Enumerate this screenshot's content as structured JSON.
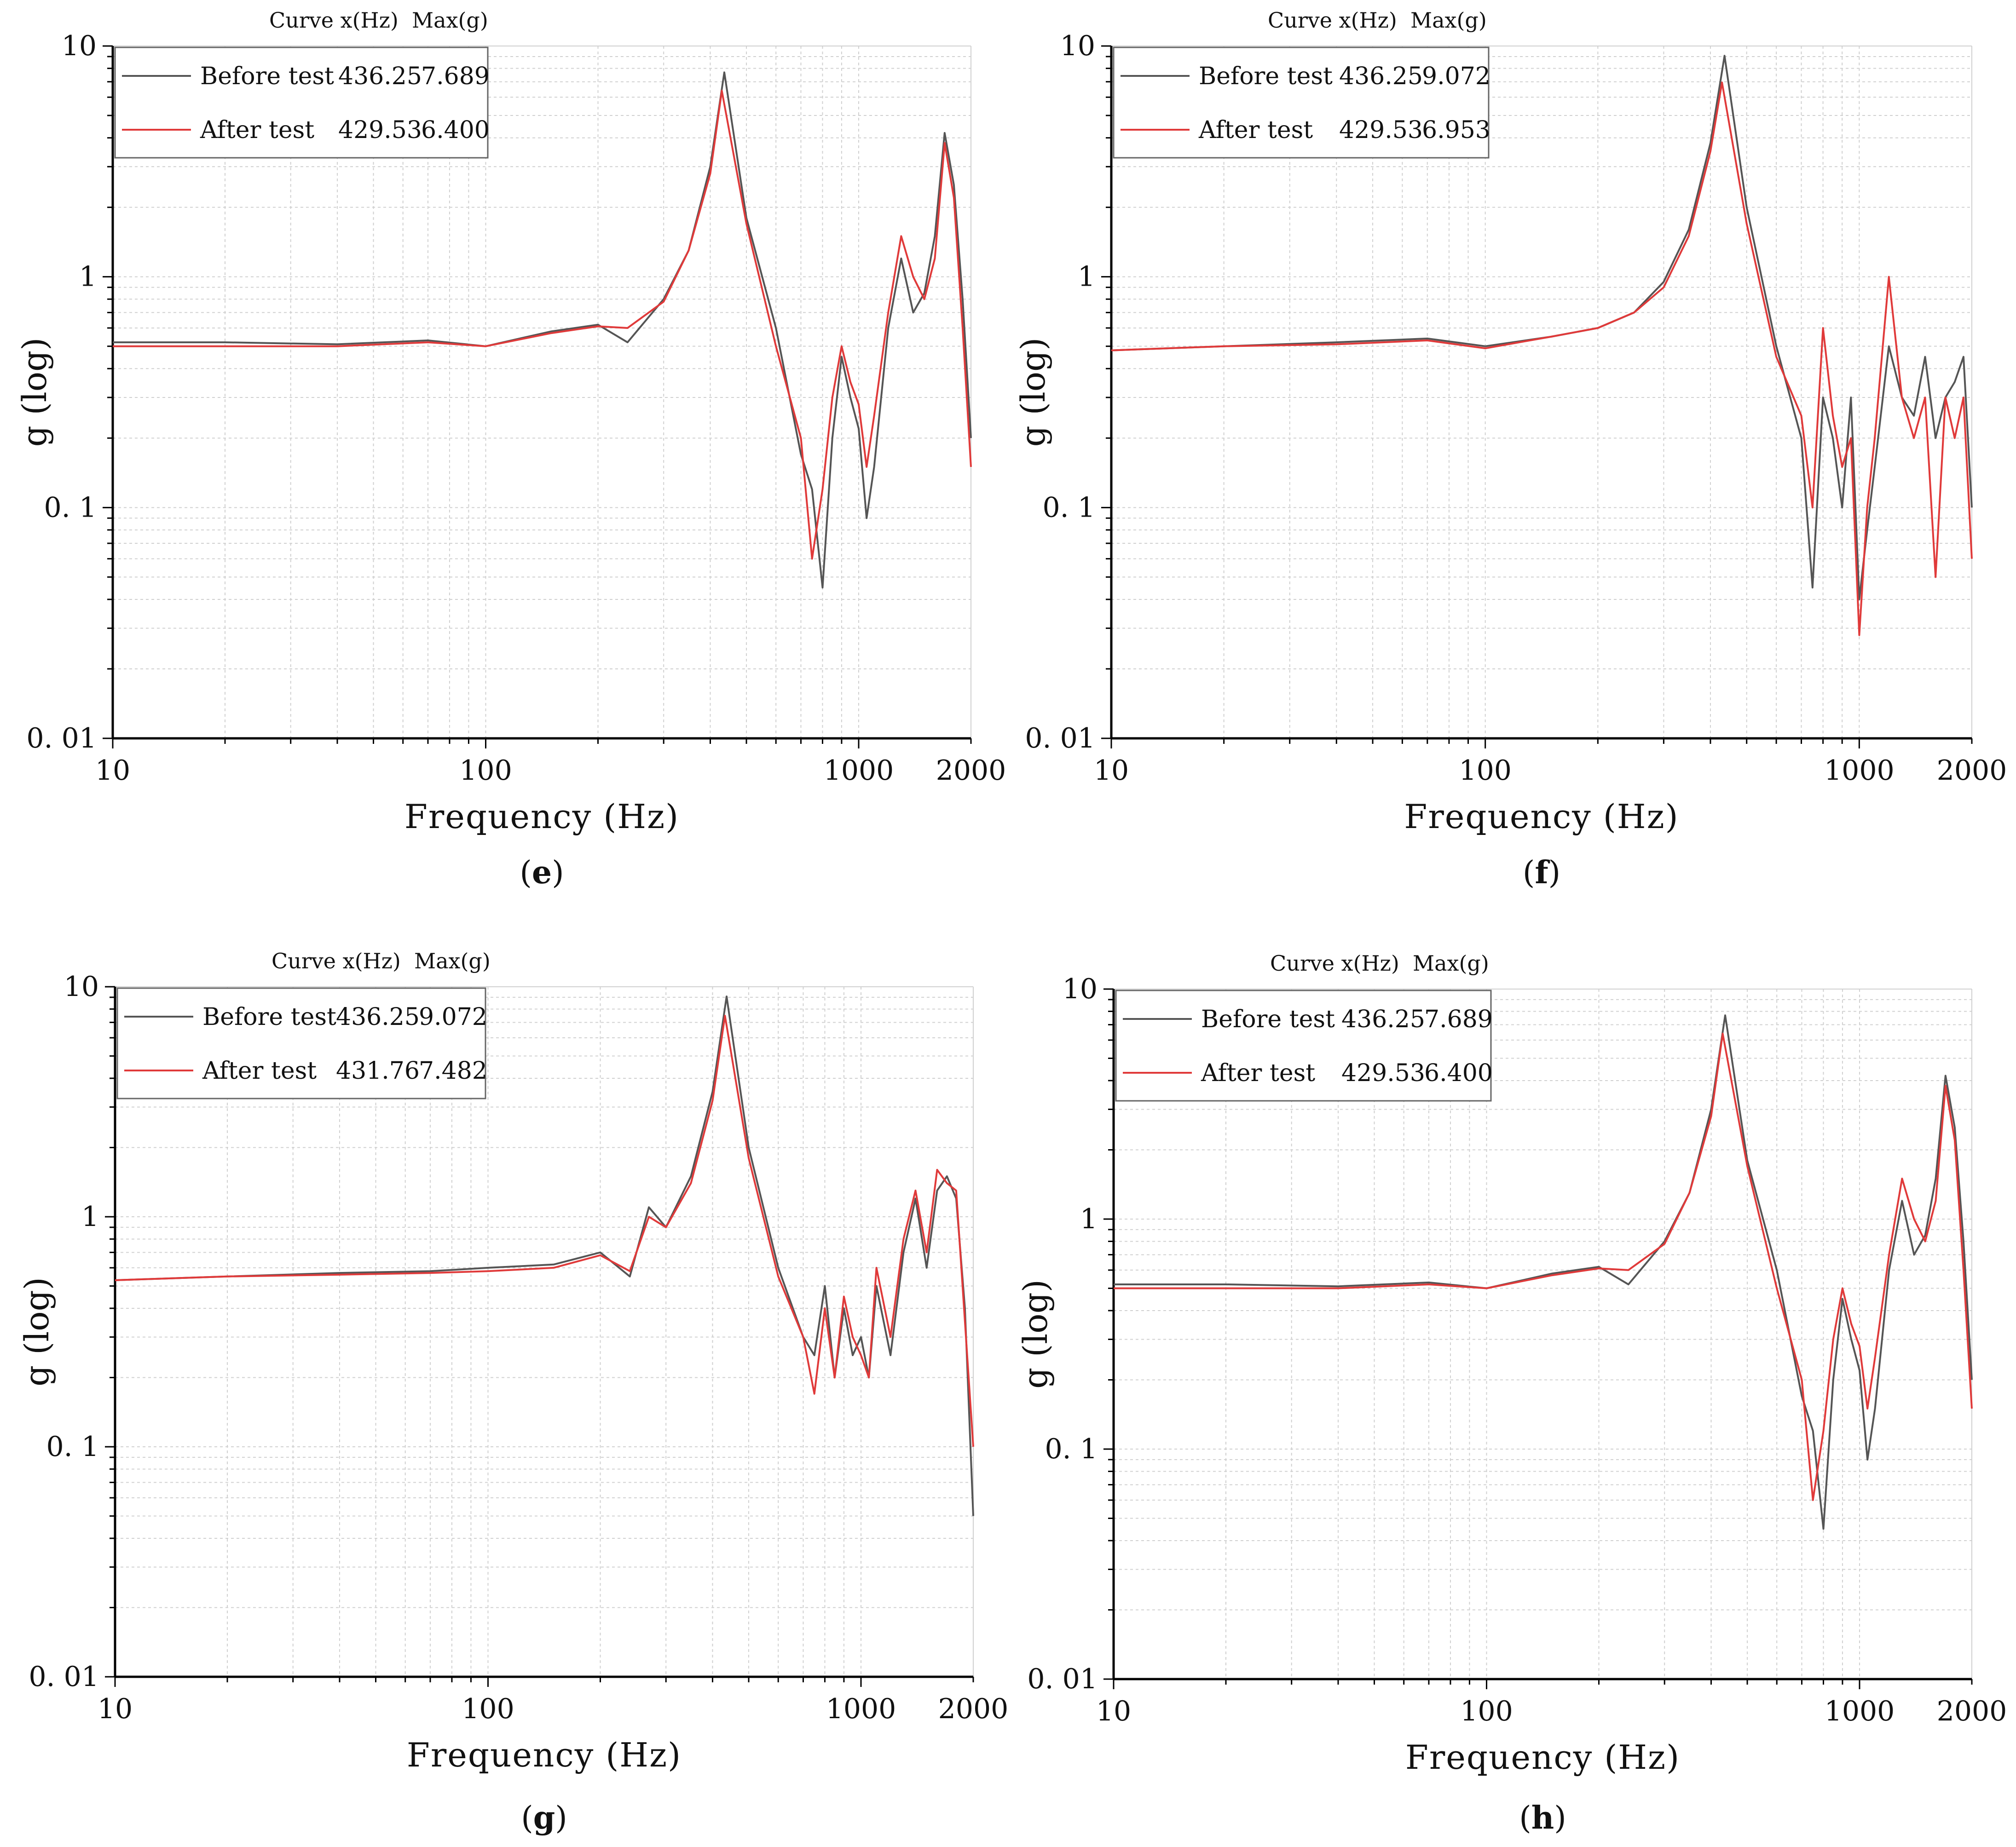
{
  "figure": {
    "legend_header_curve": "Curve x(Hz)",
    "legend_header_max": "Max(g)"
  },
  "colors": {
    "before": "#555555",
    "after": "#e03a3a",
    "grid": "#d0d0d0",
    "axis": "#000000"
  },
  "chart_data": [
    {
      "panel_label": "e",
      "type": "line",
      "xscale": "log",
      "yscale": "log",
      "xlabel": "Frequency (Hz)",
      "ylabel": "g (log)",
      "xlim": [
        10,
        2000
      ],
      "ylim": [
        0.01,
        10
      ],
      "xticks": [
        {
          "v": 10,
          "label": "10"
        },
        {
          "v": 100,
          "label": "100"
        },
        {
          "v": 1000,
          "label": "1000"
        },
        {
          "v": 2000,
          "label": "2000"
        }
      ],
      "yticks": [
        {
          "v": 10,
          "label": "10"
        },
        {
          "v": 1,
          "label": "1"
        },
        {
          "v": 0.1,
          "label": "0. 1"
        },
        {
          "v": 0.01,
          "label": "0. 01"
        }
      ],
      "legend": [
        {
          "name": "Before test",
          "x_hz": "436.25",
          "max_g": "7.689"
        },
        {
          "name": "After test",
          "x_hz": "429.53",
          "max_g": "6.400"
        }
      ],
      "series": [
        {
          "name": "Before test",
          "x": [
            10,
            20,
            40,
            70,
            100,
            150,
            200,
            240,
            300,
            350,
            400,
            436.25,
            500,
            600,
            700,
            750,
            800,
            850,
            900,
            950,
            1000,
            1050,
            1100,
            1200,
            1300,
            1400,
            1500,
            1600,
            1700,
            1800,
            1900,
            2000
          ],
          "y": [
            0.52,
            0.52,
            0.51,
            0.53,
            0.5,
            0.58,
            0.62,
            0.52,
            0.8,
            1.3,
            3.0,
            7.689,
            1.8,
            0.6,
            0.17,
            0.12,
            0.045,
            0.2,
            0.45,
            0.3,
            0.22,
            0.09,
            0.15,
            0.6,
            1.2,
            0.7,
            0.85,
            1.5,
            4.2,
            2.5,
            0.8,
            0.2
          ]
        },
        {
          "name": "After test",
          "x": [
            10,
            20,
            40,
            70,
            100,
            150,
            200,
            240,
            300,
            350,
            400,
            429.53,
            500,
            600,
            700,
            750,
            800,
            850,
            900,
            950,
            1000,
            1050,
            1100,
            1200,
            1300,
            1400,
            1500,
            1600,
            1700,
            1800,
            1900,
            2000
          ],
          "y": [
            0.5,
            0.5,
            0.5,
            0.52,
            0.5,
            0.57,
            0.61,
            0.6,
            0.78,
            1.3,
            2.8,
            6.4,
            1.7,
            0.5,
            0.2,
            0.06,
            0.12,
            0.3,
            0.5,
            0.35,
            0.28,
            0.15,
            0.25,
            0.7,
            1.5,
            1.0,
            0.8,
            1.2,
            3.8,
            2.2,
            0.6,
            0.15
          ]
        }
      ]
    },
    {
      "panel_label": "f",
      "type": "line",
      "xscale": "log",
      "yscale": "log",
      "xlabel": "Frequency (Hz)",
      "ylabel": "g (log)",
      "xlim": [
        10,
        2000
      ],
      "ylim": [
        0.01,
        10
      ],
      "xticks": [
        {
          "v": 10,
          "label": "10"
        },
        {
          "v": 100,
          "label": "100"
        },
        {
          "v": 1000,
          "label": "1000"
        },
        {
          "v": 2000,
          "label": "2000"
        }
      ],
      "yticks": [
        {
          "v": 10,
          "label": "10"
        },
        {
          "v": 1,
          "label": "1"
        },
        {
          "v": 0.1,
          "label": "0. 1"
        },
        {
          "v": 0.01,
          "label": "0. 01"
        }
      ],
      "legend": [
        {
          "name": "Before test",
          "x_hz": "436.25",
          "max_g": "9.072"
        },
        {
          "name": "After test",
          "x_hz": "429.53",
          "max_g": "6.953"
        }
      ],
      "series": [
        {
          "name": "Before test",
          "x": [
            10,
            20,
            40,
            70,
            100,
            150,
            200,
            250,
            300,
            350,
            400,
            436.25,
            500,
            600,
            700,
            750,
            800,
            850,
            900,
            950,
            1000,
            1050,
            1100,
            1200,
            1300,
            1400,
            1500,
            1600,
            1700,
            1800,
            1900,
            2000
          ],
          "y": [
            0.48,
            0.5,
            0.52,
            0.54,
            0.5,
            0.55,
            0.6,
            0.7,
            0.95,
            1.6,
            3.8,
            9.072,
            2.0,
            0.5,
            0.2,
            0.045,
            0.3,
            0.2,
            0.1,
            0.3,
            0.04,
            0.08,
            0.15,
            0.5,
            0.3,
            0.25,
            0.45,
            0.2,
            0.3,
            0.35,
            0.45,
            0.1
          ]
        },
        {
          "name": "After test",
          "x": [
            10,
            20,
            40,
            70,
            100,
            150,
            200,
            250,
            300,
            350,
            400,
            429.53,
            500,
            600,
            700,
            750,
            800,
            850,
            900,
            950,
            1000,
            1050,
            1100,
            1200,
            1300,
            1400,
            1500,
            1600,
            1700,
            1800,
            1900,
            2000
          ],
          "y": [
            0.48,
            0.5,
            0.51,
            0.53,
            0.49,
            0.55,
            0.6,
            0.7,
            0.9,
            1.5,
            3.5,
            6.953,
            1.7,
            0.45,
            0.25,
            0.1,
            0.6,
            0.25,
            0.15,
            0.2,
            0.028,
            0.1,
            0.2,
            1.0,
            0.3,
            0.2,
            0.3,
            0.05,
            0.3,
            0.2,
            0.3,
            0.06
          ]
        }
      ]
    },
    {
      "panel_label": "g",
      "type": "line",
      "xscale": "log",
      "yscale": "log",
      "xlabel": "Frequency (Hz)",
      "ylabel": "g (log)",
      "xlim": [
        10,
        2000
      ],
      "ylim": [
        0.01,
        10
      ],
      "xticks": [
        {
          "v": 10,
          "label": "10"
        },
        {
          "v": 100,
          "label": "100"
        },
        {
          "v": 1000,
          "label": "1000"
        },
        {
          "v": 2000,
          "label": "2000"
        }
      ],
      "yticks": [
        {
          "v": 10,
          "label": "10"
        },
        {
          "v": 1,
          "label": "1"
        },
        {
          "v": 0.1,
          "label": "0. 1"
        },
        {
          "v": 0.01,
          "label": "0. 01"
        }
      ],
      "legend": [
        {
          "name": "Before test",
          "x_hz": "436.25",
          "max_g": "9.072"
        },
        {
          "name": "After test",
          "x_hz": "431.76",
          "max_g": "7.482"
        }
      ],
      "series": [
        {
          "name": "Before test",
          "x": [
            10,
            20,
            40,
            70,
            100,
            150,
            200,
            240,
            270,
            300,
            350,
            400,
            436.25,
            500,
            600,
            700,
            750,
            800,
            850,
            900,
            950,
            1000,
            1050,
            1100,
            1200,
            1300,
            1400,
            1500,
            1600,
            1700,
            1800,
            1900,
            2000
          ],
          "y": [
            0.53,
            0.55,
            0.57,
            0.58,
            0.6,
            0.62,
            0.7,
            0.55,
            1.1,
            0.9,
            1.5,
            3.5,
            9.072,
            2.0,
            0.6,
            0.3,
            0.25,
            0.5,
            0.2,
            0.4,
            0.25,
            0.3,
            0.2,
            0.5,
            0.25,
            0.7,
            1.2,
            0.6,
            1.3,
            1.5,
            1.2,
            0.4,
            0.05
          ]
        },
        {
          "name": "After test",
          "x": [
            10,
            20,
            40,
            70,
            100,
            150,
            200,
            240,
            270,
            300,
            350,
            400,
            431.76,
            500,
            600,
            700,
            750,
            800,
            850,
            900,
            950,
            1000,
            1050,
            1100,
            1200,
            1300,
            1400,
            1500,
            1600,
            1700,
            1800,
            1900,
            2000
          ],
          "y": [
            0.53,
            0.55,
            0.56,
            0.57,
            0.58,
            0.6,
            0.68,
            0.58,
            1.0,
            0.9,
            1.4,
            3.2,
            7.482,
            1.8,
            0.55,
            0.3,
            0.17,
            0.4,
            0.2,
            0.45,
            0.3,
            0.25,
            0.2,
            0.6,
            0.3,
            0.8,
            1.3,
            0.7,
            1.6,
            1.4,
            1.3,
            0.35,
            0.1
          ]
        }
      ]
    },
    {
      "panel_label": "h",
      "type": "line",
      "xscale": "log",
      "yscale": "log",
      "xlabel": "Frequency (Hz)",
      "ylabel": "g (log)",
      "xlim": [
        10,
        2000
      ],
      "ylim": [
        0.01,
        10
      ],
      "xticks": [
        {
          "v": 10,
          "label": "10"
        },
        {
          "v": 100,
          "label": "100"
        },
        {
          "v": 1000,
          "label": "1000"
        },
        {
          "v": 2000,
          "label": "2000"
        }
      ],
      "yticks": [
        {
          "v": 10,
          "label": "10"
        },
        {
          "v": 1,
          "label": "1"
        },
        {
          "v": 0.1,
          "label": "0. 1"
        },
        {
          "v": 0.01,
          "label": "0. 01"
        }
      ],
      "legend": [
        {
          "name": "Before test",
          "x_hz": "436.25",
          "max_g": "7.689"
        },
        {
          "name": "After test",
          "x_hz": "429.53",
          "max_g": "6.400"
        }
      ],
      "series": [
        {
          "name": "Before test",
          "x": [
            10,
            20,
            40,
            70,
            100,
            150,
            200,
            240,
            300,
            350,
            400,
            436.25,
            500,
            600,
            700,
            750,
            800,
            850,
            900,
            950,
            1000,
            1050,
            1100,
            1200,
            1300,
            1400,
            1500,
            1600,
            1700,
            1800,
            1900,
            2000
          ],
          "y": [
            0.52,
            0.52,
            0.51,
            0.53,
            0.5,
            0.58,
            0.62,
            0.52,
            0.8,
            1.3,
            3.0,
            7.689,
            1.8,
            0.6,
            0.17,
            0.12,
            0.045,
            0.2,
            0.45,
            0.3,
            0.22,
            0.09,
            0.15,
            0.6,
            1.2,
            0.7,
            0.85,
            1.5,
            4.2,
            2.5,
            0.8,
            0.2
          ]
        },
        {
          "name": "After test",
          "x": [
            10,
            20,
            40,
            70,
            100,
            150,
            200,
            240,
            300,
            350,
            400,
            429.53,
            500,
            600,
            700,
            750,
            800,
            850,
            900,
            950,
            1000,
            1050,
            1100,
            1200,
            1300,
            1400,
            1500,
            1600,
            1700,
            1800,
            1900,
            2000
          ],
          "y": [
            0.5,
            0.5,
            0.5,
            0.52,
            0.5,
            0.57,
            0.61,
            0.6,
            0.78,
            1.3,
            2.8,
            6.4,
            1.7,
            0.5,
            0.2,
            0.06,
            0.12,
            0.3,
            0.5,
            0.35,
            0.28,
            0.15,
            0.25,
            0.7,
            1.5,
            1.0,
            0.8,
            1.2,
            3.8,
            2.2,
            0.6,
            0.15
          ]
        }
      ]
    }
  ]
}
